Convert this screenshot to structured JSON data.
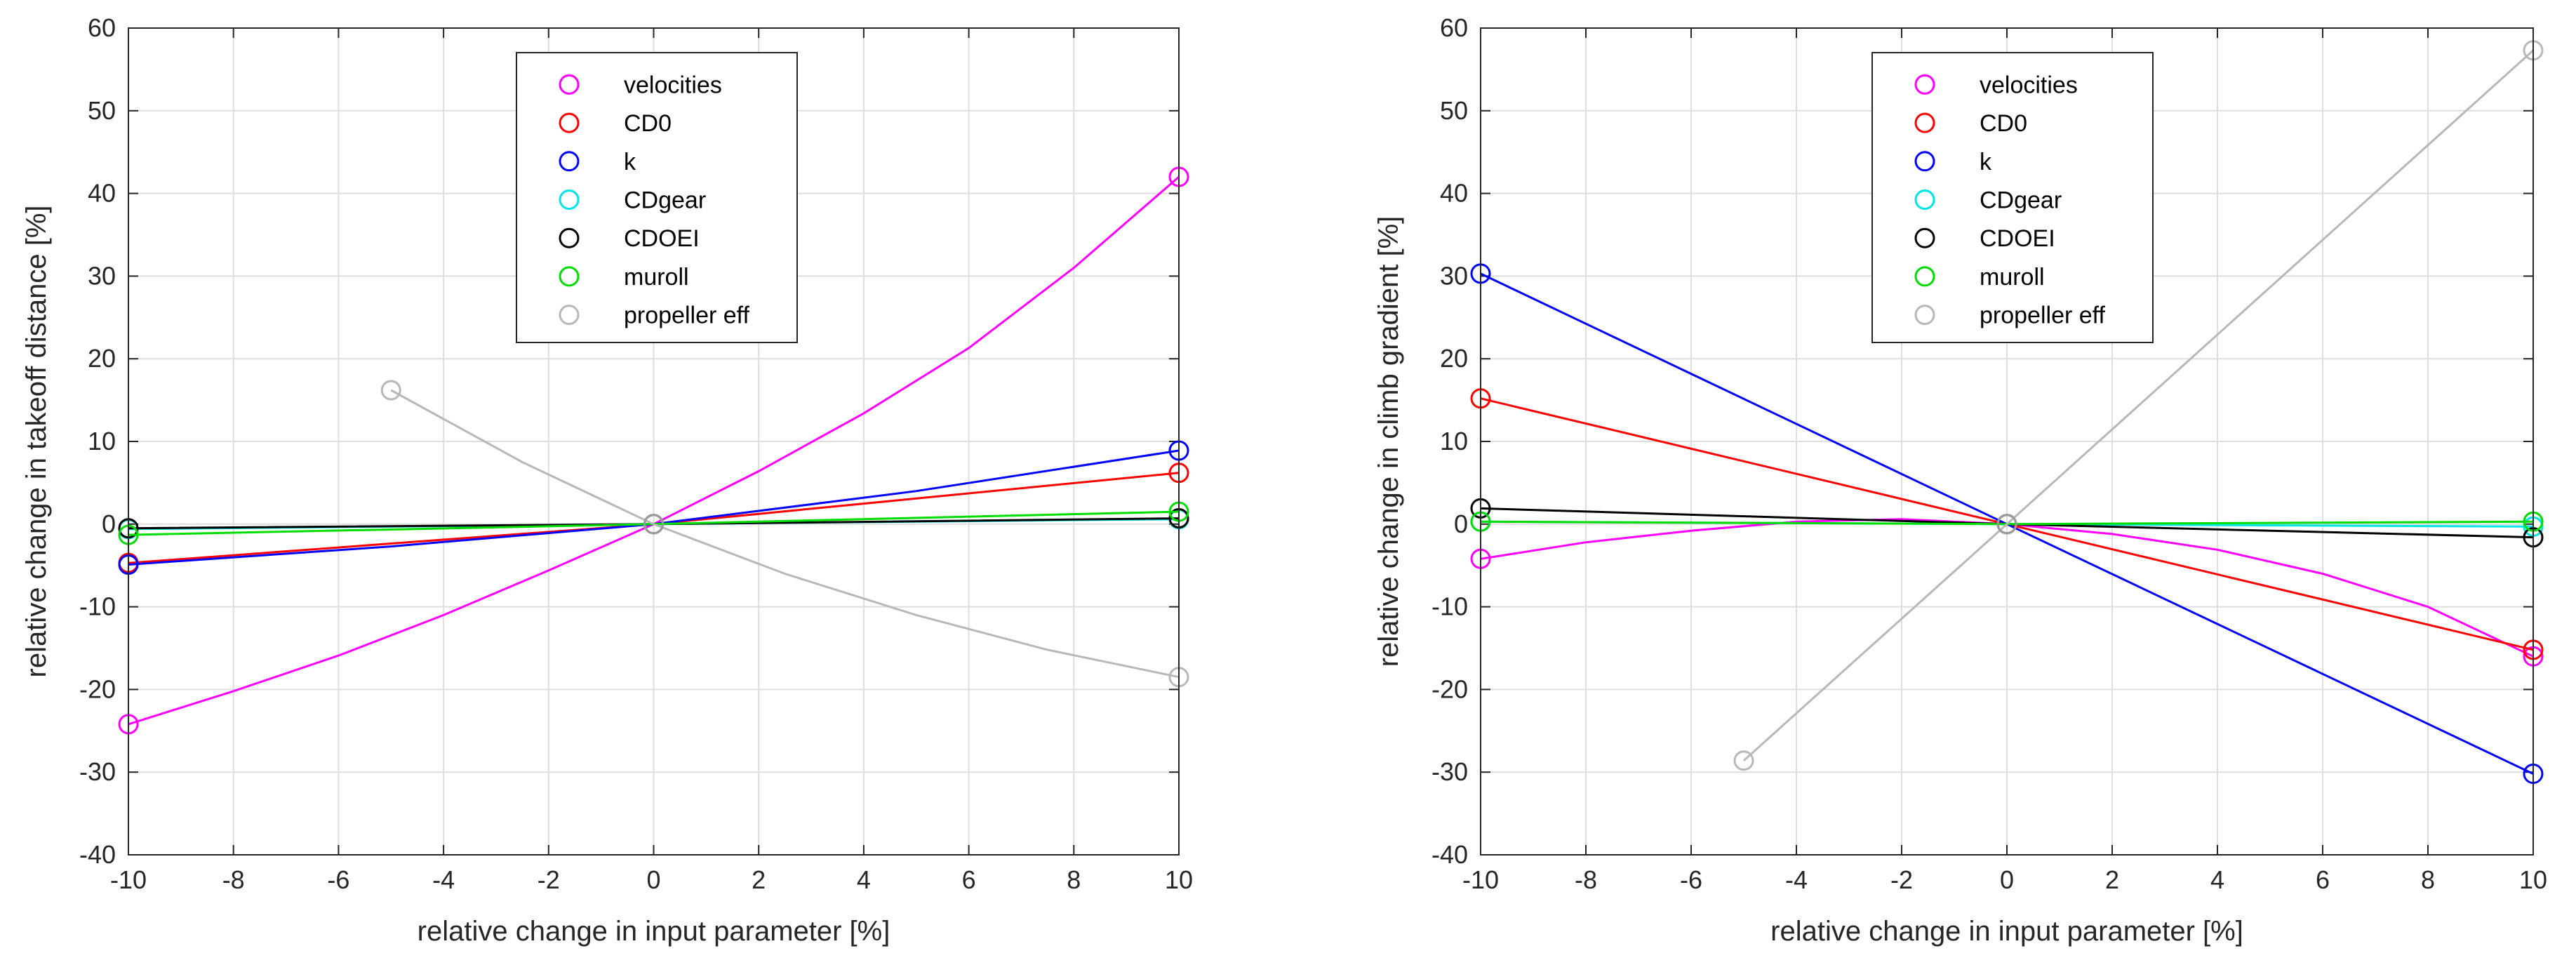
{
  "chart_data": [
    {
      "type": "line",
      "title": "",
      "xlabel": "relative change in input parameter [%]",
      "ylabel": "relative change in takeoff distance [%]",
      "xlim": [
        -10,
        10
      ],
      "ylim": [
        -40,
        60
      ],
      "xticks": [
        -10,
        -8,
        -6,
        -4,
        -2,
        0,
        2,
        4,
        6,
        8,
        10
      ],
      "yticks": [
        -40,
        -30,
        -20,
        -10,
        0,
        10,
        20,
        30,
        40,
        50,
        60
      ],
      "grid": true,
      "legend_position": "top-center",
      "series": [
        {
          "name": "velocities",
          "color": "#ff00ff",
          "points": [
            [
              -10,
              -24.2
            ],
            [
              -8,
              -20.2
            ],
            [
              -6,
              -15.9
            ],
            [
              -4,
              -11.0
            ],
            [
              -2,
              -5.6
            ],
            [
              0,
              0
            ],
            [
              2,
              6.4
            ],
            [
              4,
              13.4
            ],
            [
              6,
              21.3
            ],
            [
              8,
              31.0
            ],
            [
              10,
              42.0
            ]
          ]
        },
        {
          "name": "CD0",
          "color": "#ff0000",
          "points": [
            [
              -10,
              -4.7
            ],
            [
              0,
              0
            ],
            [
              10,
              6.2
            ]
          ]
        },
        {
          "name": "k",
          "color": "#0000ff",
          "points": [
            [
              -10,
              -4.9
            ],
            [
              -5,
              -2.7
            ],
            [
              0,
              0
            ],
            [
              5,
              4.0
            ],
            [
              10,
              8.9
            ]
          ]
        },
        {
          "name": "CDgear",
          "color": "#00e5e5",
          "points": [
            [
              -10,
              -0.6
            ],
            [
              0,
              0
            ],
            [
              10,
              0.6
            ]
          ]
        },
        {
          "name": "CDOEI",
          "color": "#000000",
          "points": [
            [
              -10,
              -0.5
            ],
            [
              0,
              0
            ],
            [
              10,
              0.7
            ]
          ]
        },
        {
          "name": "muroll",
          "color": "#00dd00",
          "points": [
            [
              -10,
              -1.3
            ],
            [
              0,
              0
            ],
            [
              10,
              1.5
            ]
          ]
        },
        {
          "name": "propeller eff",
          "color": "#b8b8b8",
          "points": [
            [
              -5,
              16.2
            ],
            [
              -2.5,
              7.5
            ],
            [
              0,
              0
            ],
            [
              2.5,
              -6.0
            ],
            [
              5,
              -11.0
            ],
            [
              7.5,
              -15.2
            ],
            [
              10,
              -18.5
            ]
          ]
        }
      ]
    },
    {
      "type": "line",
      "title": "",
      "xlabel": "relative change in input parameter [%]",
      "ylabel": "relative change in climb gradient [%]",
      "xlim": [
        -10,
        10
      ],
      "ylim": [
        -40,
        60
      ],
      "xticks": [
        -10,
        -8,
        -6,
        -4,
        -2,
        0,
        2,
        4,
        6,
        8,
        10
      ],
      "yticks": [
        -40,
        -30,
        -20,
        -10,
        0,
        10,
        20,
        30,
        40,
        50,
        60
      ],
      "grid": true,
      "legend_position": "top-center",
      "series": [
        {
          "name": "velocities",
          "color": "#ff00ff",
          "points": [
            [
              -10,
              -4.2
            ],
            [
              -8,
              -2.2
            ],
            [
              -6,
              -0.8
            ],
            [
              -4,
              0.3
            ],
            [
              -2,
              0.6
            ],
            [
              0,
              0
            ],
            [
              2,
              -1.2
            ],
            [
              4,
              -3.1
            ],
            [
              6,
              -6.0
            ],
            [
              8,
              -10.0
            ],
            [
              10,
              -16.0
            ]
          ]
        },
        {
          "name": "CD0",
          "color": "#ff0000",
          "points": [
            [
              -10,
              15.2
            ],
            [
              0,
              0
            ],
            [
              10,
              -15.2
            ]
          ]
        },
        {
          "name": "k",
          "color": "#0000ff",
          "points": [
            [
              -10,
              30.3
            ],
            [
              0,
              0
            ],
            [
              10,
              -30.2
            ]
          ]
        },
        {
          "name": "CDgear",
          "color": "#00e5e5",
          "points": [
            [
              -10,
              0.3
            ],
            [
              0,
              0
            ],
            [
              10,
              -0.3
            ]
          ]
        },
        {
          "name": "CDOEI",
          "color": "#000000",
          "points": [
            [
              -10,
              1.9
            ],
            [
              0,
              0
            ],
            [
              10,
              -1.6
            ]
          ]
        },
        {
          "name": "muroll",
          "color": "#00dd00",
          "points": [
            [
              -10,
              0.3
            ],
            [
              0,
              0
            ],
            [
              10,
              0.3
            ]
          ]
        },
        {
          "name": "propeller eff",
          "color": "#b8b8b8",
          "points": [
            [
              -5,
              -28.6
            ],
            [
              0,
              0
            ],
            [
              10,
              57.3
            ]
          ]
        }
      ]
    }
  ]
}
